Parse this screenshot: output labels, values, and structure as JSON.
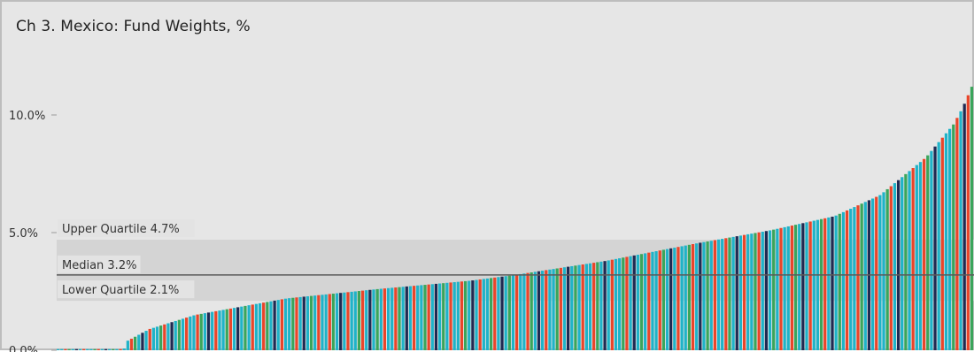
{
  "chart_data": {
    "type": "bar",
    "title": "Ch 3. Mexico:  Fund Weights, %",
    "xlabel": "",
    "ylabel": "",
    "ylim": [
      0,
      11.4
    ],
    "yticks": [
      {
        "value": 0,
        "label": "0.0%"
      },
      {
        "value": 5,
        "label": "5.0%"
      },
      {
        "value": 10,
        "label": "10.0%"
      }
    ],
    "grid": false,
    "legend": "none",
    "colors": [
      "#1fb3c8",
      "#e9452a",
      "#3aa55b",
      "#1f2a52"
    ],
    "bar_color_pattern": [
      0,
      0,
      1,
      2,
      0,
      3,
      0,
      1,
      0,
      0,
      2,
      1,
      0,
      3,
      0,
      2,
      0,
      1
    ],
    "bar_count": 250,
    "zero_bar_count": 18,
    "sorted_ascending": true,
    "values_anchor": [
      [
        0.0,
        0.05
      ],
      [
        0.072,
        0.05
      ],
      [
        0.076,
        0.4
      ],
      [
        0.1,
        0.9
      ],
      [
        0.15,
        1.5
      ],
      [
        0.25,
        2.2
      ],
      [
        0.35,
        2.6
      ],
      [
        0.45,
        2.95
      ],
      [
        0.5,
        3.2
      ],
      [
        0.6,
        3.8
      ],
      [
        0.7,
        4.55
      ],
      [
        0.78,
        5.1
      ],
      [
        0.85,
        5.7
      ],
      [
        0.9,
        6.6
      ],
      [
        0.95,
        8.2
      ],
      [
        0.98,
        9.6
      ],
      [
        0.99,
        10.3
      ],
      [
        1.0,
        11.2
      ]
    ],
    "bands": {
      "upper_quartile": {
        "value": 4.7,
        "label": "Upper Quartile 4.7%"
      },
      "median": {
        "value": 3.2,
        "label": "Median 3.2%"
      },
      "lower_quartile": {
        "value": 2.1,
        "label": "Lower Quartile 2.1%"
      }
    }
  }
}
